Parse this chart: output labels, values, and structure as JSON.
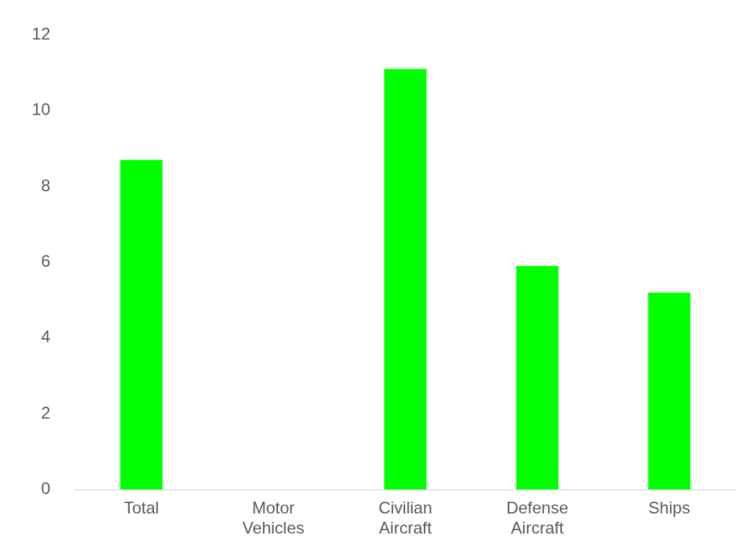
{
  "chart_data": {
    "type": "bar",
    "categories": [
      "Total",
      "Motor Vehicles",
      "Civilian Aircraft",
      "Defense Aircraft",
      "Ships"
    ],
    "values": [
      8.7,
      0,
      11.1,
      5.9,
      5.2
    ],
    "color": "#00ff00",
    "ylim": [
      0,
      12
    ],
    "yticks": [
      0,
      2,
      4,
      6,
      8,
      10,
      12
    ],
    "grid": false,
    "legend": false
  }
}
